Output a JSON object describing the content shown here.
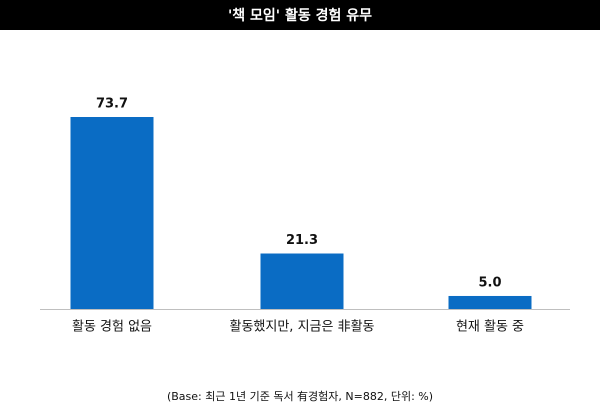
{
  "chart_data": {
    "type": "bar",
    "title": "'책 모임' 활동 경험 유무",
    "categories": [
      "활동 경험 없음",
      "활동했지만, 지금은 非활동",
      "현재 활동 중"
    ],
    "values": [
      73.7,
      21.3,
      5.0
    ],
    "value_labels": [
      "73.7",
      "21.3",
      "5.0"
    ],
    "color": "#0a6cc4",
    "footnote": "(Base: 최근 1년 기준 독서 有경험자, N=882, 단위: %)"
  }
}
